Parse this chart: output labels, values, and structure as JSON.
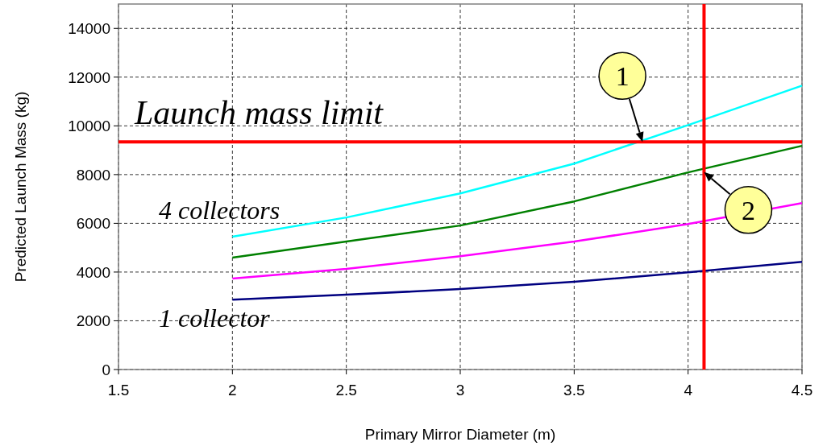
{
  "chart_data": {
    "type": "line",
    "xlabel": "Primary Mirror Diameter (m)",
    "ylabel": "Predicted Launch Mass (kg)",
    "x": [
      2,
      2.5,
      3,
      3.5,
      4,
      4.5
    ],
    "series": [
      {
        "name": "1 collector",
        "color": "#000080",
        "values": [
          2870,
          3070,
          3300,
          3600,
          3990,
          4420
        ]
      },
      {
        "color": "#ff00ff",
        "values": [
          3730,
          4130,
          4650,
          5250,
          5970,
          6830
        ]
      },
      {
        "color": "#008000",
        "values": [
          4590,
          5250,
          5910,
          6900,
          8090,
          9180
        ]
      },
      {
        "name": "4 collectors",
        "color": "#00ffff",
        "values": [
          5450,
          6240,
          7230,
          8450,
          10030,
          11650
        ]
      }
    ],
    "xlim": [
      1.5,
      4.5
    ],
    "xticks": [
      1.5,
      2,
      2.5,
      3,
      3.5,
      4,
      4.5
    ],
    "ylim": [
      0,
      15000
    ],
    "yticks": [
      0,
      2000,
      4000,
      6000,
      8000,
      10000,
      12000,
      14000
    ],
    "grid": true,
    "marker": "none",
    "line_style": "solid",
    "ref_lines": [
      {
        "axis": "y",
        "value": 9340,
        "label": "Launch mass limit",
        "color": "#ff0000"
      },
      {
        "axis": "x",
        "value": 4.07,
        "color": "#ff0000"
      }
    ],
    "annotations": [
      {
        "text": "1",
        "x": 3.8,
        "y": 9340
      },
      {
        "text": "2",
        "x": 4.07,
        "y": 8100
      }
    ]
  }
}
